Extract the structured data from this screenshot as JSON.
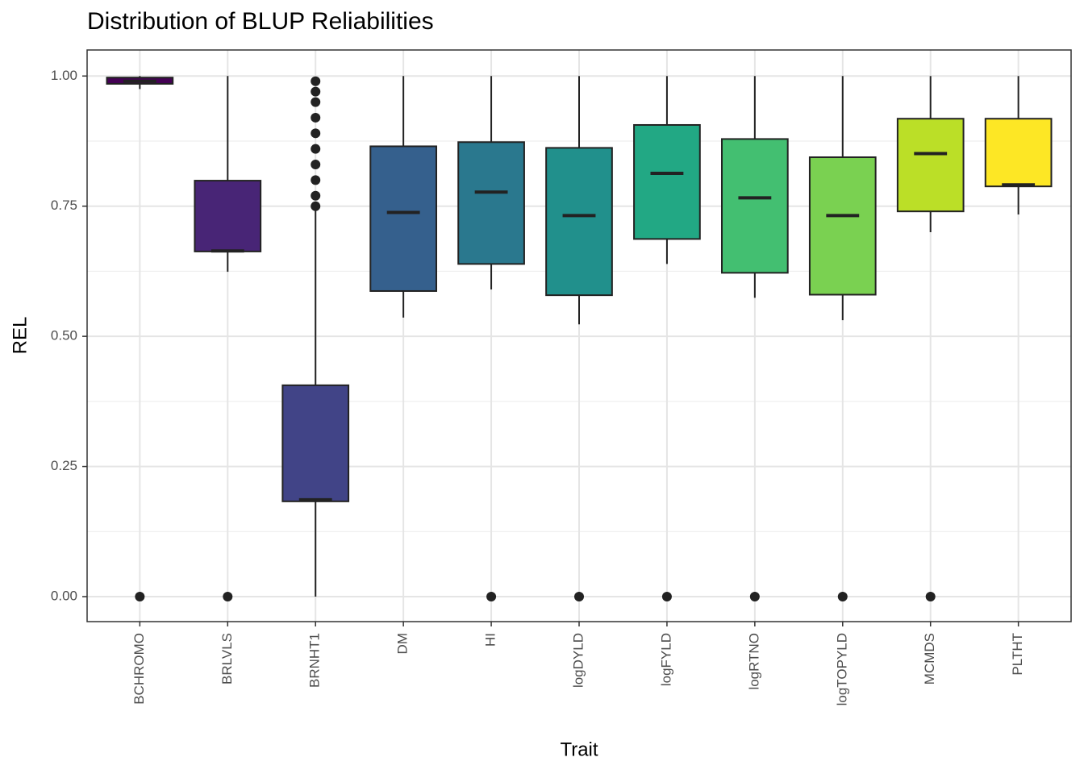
{
  "chart_data": {
    "type": "boxplot",
    "title": "Distribution of BLUP Reliabilities",
    "x_label": "Trait",
    "y_label": "REL",
    "categories": [
      "BCHROMO",
      "BRLVLS",
      "BRNHT1",
      "DM",
      "HI",
      "logDYLD",
      "logFYLD",
      "logRTNO",
      "logTOPYLD",
      "MCMDS",
      "PLTHT"
    ],
    "colors": [
      "#440154",
      "#482576",
      "#414487",
      "#35608d",
      "#2a788e",
      "#21908c",
      "#22a884",
      "#43bf71",
      "#7ad151",
      "#bbdf27",
      "#fde725"
    ],
    "boxes": [
      {
        "min": 0.975,
        "q1": 0.985,
        "median": 0.99,
        "q3": 0.997,
        "max": 1.0,
        "outliers": [
          0
        ]
      },
      {
        "min": 0.624,
        "q1": 0.663,
        "median": 0.664,
        "q3": 0.799,
        "max": 1.0,
        "outliers": [
          0
        ]
      },
      {
        "min": 0,
        "q1": 0.183,
        "median": 0.186,
        "q3": 0.406,
        "max": 0.746,
        "outliers": [
          0.75,
          0.77,
          0.8,
          0.83,
          0.86,
          0.89,
          0.92,
          0.95,
          0.97,
          0.99
        ]
      },
      {
        "min": 0.536,
        "q1": 0.587,
        "median": 0.738,
        "q3": 0.865,
        "max": 1.0,
        "outliers": []
      },
      {
        "min": 0.59,
        "q1": 0.639,
        "median": 0.777,
        "q3": 0.873,
        "max": 1.0,
        "outliers": [
          0
        ]
      },
      {
        "min": 0.523,
        "q1": 0.579,
        "median": 0.732,
        "q3": 0.862,
        "max": 1.0,
        "outliers": [
          0
        ]
      },
      {
        "min": 0.639,
        "q1": 0.687,
        "median": 0.813,
        "q3": 0.906,
        "max": 1.0,
        "outliers": [
          0
        ]
      },
      {
        "min": 0.574,
        "q1": 0.622,
        "median": 0.766,
        "q3": 0.879,
        "max": 1.0,
        "outliers": [
          0
        ]
      },
      {
        "min": 0.531,
        "q1": 0.58,
        "median": 0.732,
        "q3": 0.844,
        "max": 1.0,
        "outliers": [
          0
        ]
      },
      {
        "min": 0.7,
        "q1": 0.74,
        "median": 0.851,
        "q3": 0.918,
        "max": 1.0,
        "outliers": [
          0
        ]
      },
      {
        "min": 0.734,
        "q1": 0.788,
        "median": 0.791,
        "q3": 0.918,
        "max": 1.0,
        "outliers": []
      }
    ],
    "ylim": [
      -0.048,
      1.05
    ],
    "yticks": [
      {
        "value": 0,
        "label": "0.00"
      },
      0.25,
      {
        "value": 0.5,
        "label": "0.50"
      },
      0.75,
      {
        "value": 1,
        "label": "1.00"
      }
    ],
    "grid": true
  }
}
